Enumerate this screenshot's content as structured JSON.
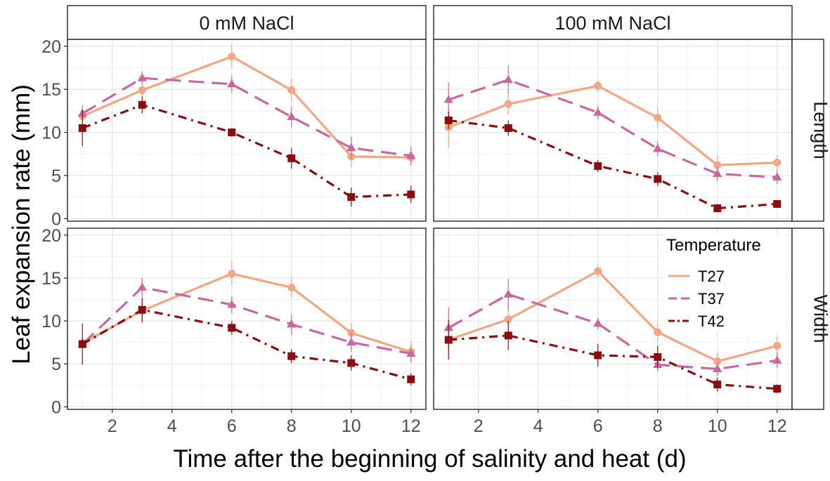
{
  "chart_data": {
    "type": "line",
    "xlabel": "Time after the beginning of salinity and heat (d)",
    "ylabel": "Leaf expansion rate (mm)",
    "x": [
      1,
      3,
      6,
      8,
      10,
      12
    ],
    "xlim": [
      0.5,
      12.5
    ],
    "ylim": [
      -0.3,
      20.8
    ],
    "xticks": [
      2,
      4,
      6,
      8,
      10,
      12
    ],
    "yticks": [
      0,
      5,
      10,
      15,
      20
    ],
    "column_strips": [
      "0 mM NaCl",
      "100 mM NaCl"
    ],
    "row_strips": [
      "Length",
      "Width"
    ],
    "legend": {
      "title": "Temperature",
      "position": "inside bottom-right panel, top-right",
      "entries": [
        "T27",
        "T37",
        "T42"
      ]
    },
    "colors": {
      "T27": "#f4a582",
      "T37": "#c9679f",
      "T42": "#8b0d0d"
    },
    "panels": [
      {
        "column": "0 mM NaCl",
        "row": "Length",
        "series": [
          {
            "name": "T27",
            "values": [
              11.9,
              14.9,
              18.8,
              14.9,
              7.2,
              7.1
            ],
            "errors": [
              0.6,
              0.8,
              1.3,
              1.3,
              1.2,
              0.9
            ]
          },
          {
            "name": "T37",
            "values": [
              12.2,
              16.3,
              15.6,
              11.8,
              8.2,
              7.3
            ],
            "errors": [
              0.9,
              0.8,
              1.0,
              1.2,
              1.3,
              1.1
            ]
          },
          {
            "name": "T42",
            "values": [
              10.5,
              13.2,
              10.0,
              7.0,
              2.5,
              2.8
            ],
            "errors": [
              2.1,
              1.0,
              0.5,
              1.2,
              1.1,
              1.0
            ]
          }
        ]
      },
      {
        "column": "100 mM NaCl",
        "row": "Length",
        "series": [
          {
            "name": "T27",
            "values": [
              10.6,
              13.3,
              15.4,
              11.7,
              6.2,
              6.5
            ],
            "errors": [
              2.4,
              1.3,
              0.7,
              1.2,
              1.1,
              0.9
            ]
          },
          {
            "name": "T37",
            "values": [
              13.8,
              16.1,
              12.3,
              8.1,
              5.2,
              4.8
            ],
            "errors": [
              2.0,
              1.6,
              0.8,
              0.9,
              0.8,
              0.8
            ]
          },
          {
            "name": "T42",
            "values": [
              11.4,
              10.5,
              6.1,
              4.6,
              1.2,
              1.7
            ],
            "errors": [
              1.0,
              0.9,
              0.7,
              0.8,
              0.5,
              0.3
            ]
          }
        ]
      },
      {
        "column": "0 mM NaCl",
        "row": "Width",
        "series": [
          {
            "name": "T27",
            "values": [
              7.4,
              11.2,
              15.5,
              13.9,
              8.6,
              6.4
            ],
            "errors": [
              0.4,
              1.5,
              1.4,
              1.2,
              1.1,
              1.3
            ]
          },
          {
            "name": "T37",
            "values": [
              7.3,
              13.9,
              11.9,
              9.6,
              7.5,
              6.2
            ],
            "errors": [
              0.5,
              1.1,
              1.0,
              1.2,
              1.1,
              1.0
            ]
          },
          {
            "name": "T42",
            "values": [
              7.3,
              11.3,
              9.2,
              5.9,
              5.1,
              3.2
            ],
            "errors": [
              2.4,
              1.4,
              0.8,
              0.8,
              0.9,
              0.7
            ]
          }
        ]
      },
      {
        "column": "100 mM NaCl",
        "row": "Width",
        "series": [
          {
            "name": "T27",
            "values": [
              7.8,
              10.2,
              15.8,
              8.7,
              5.3,
              7.1
            ],
            "errors": [
              1.0,
              2.0,
              0.8,
              1.1,
              1.0,
              1.2
            ]
          },
          {
            "name": "T37",
            "values": [
              9.2,
              13.1,
              9.7,
              4.9,
              4.4,
              5.4
            ],
            "errors": [
              2.4,
              1.8,
              0.7,
              0.8,
              0.8,
              0.9
            ]
          },
          {
            "name": "T42",
            "values": [
              7.8,
              8.3,
              6.0,
              5.8,
              2.6,
              2.1
            ],
            "errors": [
              2.3,
              1.7,
              1.3,
              1.3,
              0.8,
              0.5
            ]
          }
        ]
      }
    ]
  }
}
